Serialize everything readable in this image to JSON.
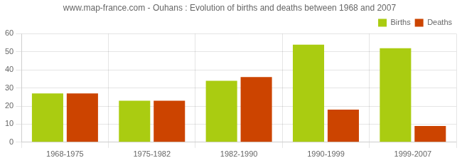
{
  "chart_data": {
    "type": "bar",
    "title": "www.map-france.com - Ouhans : Evolution of births and deaths between 1968 and 2007",
    "categories": [
      "1968-1975",
      "1975-1982",
      "1982-1990",
      "1990-1999",
      "1999-2007"
    ],
    "series": [
      {
        "name": "Births",
        "color": "#aacc11",
        "values": [
          27,
          23,
          34,
          54,
          52
        ]
      },
      {
        "name": "Deaths",
        "color": "#cc4400",
        "values": [
          27,
          23,
          36,
          18,
          9
        ]
      }
    ],
    "ylim": [
      0,
      60
    ],
    "yticks": [
      0,
      10,
      20,
      30,
      40,
      50,
      60
    ],
    "grid": true,
    "legend": "upper right"
  }
}
